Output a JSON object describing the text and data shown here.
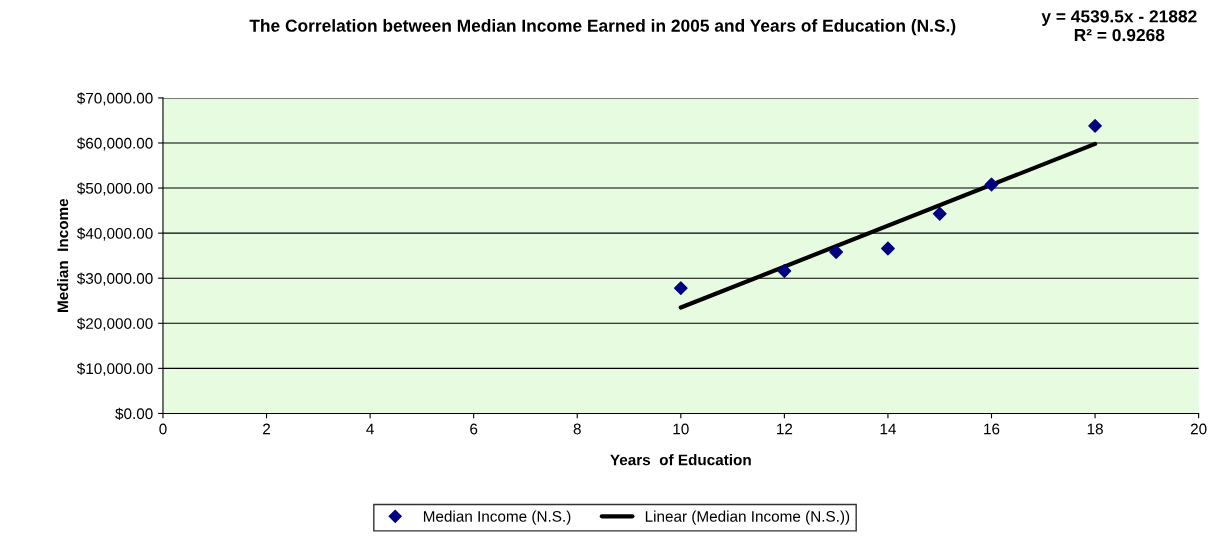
{
  "chart_data": {
    "type": "scatter",
    "title": "The Correlation between Median Income Earned in 2005 and Years of Education (N.S.)",
    "xlabel": "Years  of Education",
    "ylabel": "Median  Income",
    "annotations": [
      "y = 4539.5x - 21882\nR² = 0.9268"
    ],
    "series": [
      {
        "name": "Median Income (N.S.)",
        "color": "#000080",
        "marker": "diamond",
        "x": [
          10,
          12,
          13,
          14,
          15,
          16,
          18
        ],
        "values": [
          27800,
          31600,
          35800,
          36600,
          44300,
          50800,
          63800
        ]
      },
      {
        "name": "Linear (Median Income (N.S.))",
        "type": "line",
        "color": "#000000",
        "marker": "none",
        "line_style": "solid",
        "x": [
          10,
          18
        ],
        "values": [
          23500,
          59800
        ]
      }
    ],
    "xlim": [
      0,
      20
    ],
    "xticks": [
      0,
      2,
      4,
      6,
      8,
      10,
      12,
      14,
      16,
      18,
      20
    ],
    "ylim": [
      0,
      70000
    ],
    "yticks": [
      {
        "value": 0,
        "label": "$0.00"
      },
      {
        "value": 10000,
        "label": "$10,000.00"
      },
      {
        "value": 20000,
        "label": "$20,000.00"
      },
      {
        "value": 30000,
        "label": "$30,000.00"
      },
      {
        "value": 40000,
        "label": "$40,000.00"
      },
      {
        "value": 50000,
        "label": "$50,000.00"
      },
      {
        "value": 60000,
        "label": "$60,000.00"
      },
      {
        "value": 70000,
        "label": "$70,000.00"
      }
    ],
    "grid": "y",
    "legend": "bottom"
  }
}
